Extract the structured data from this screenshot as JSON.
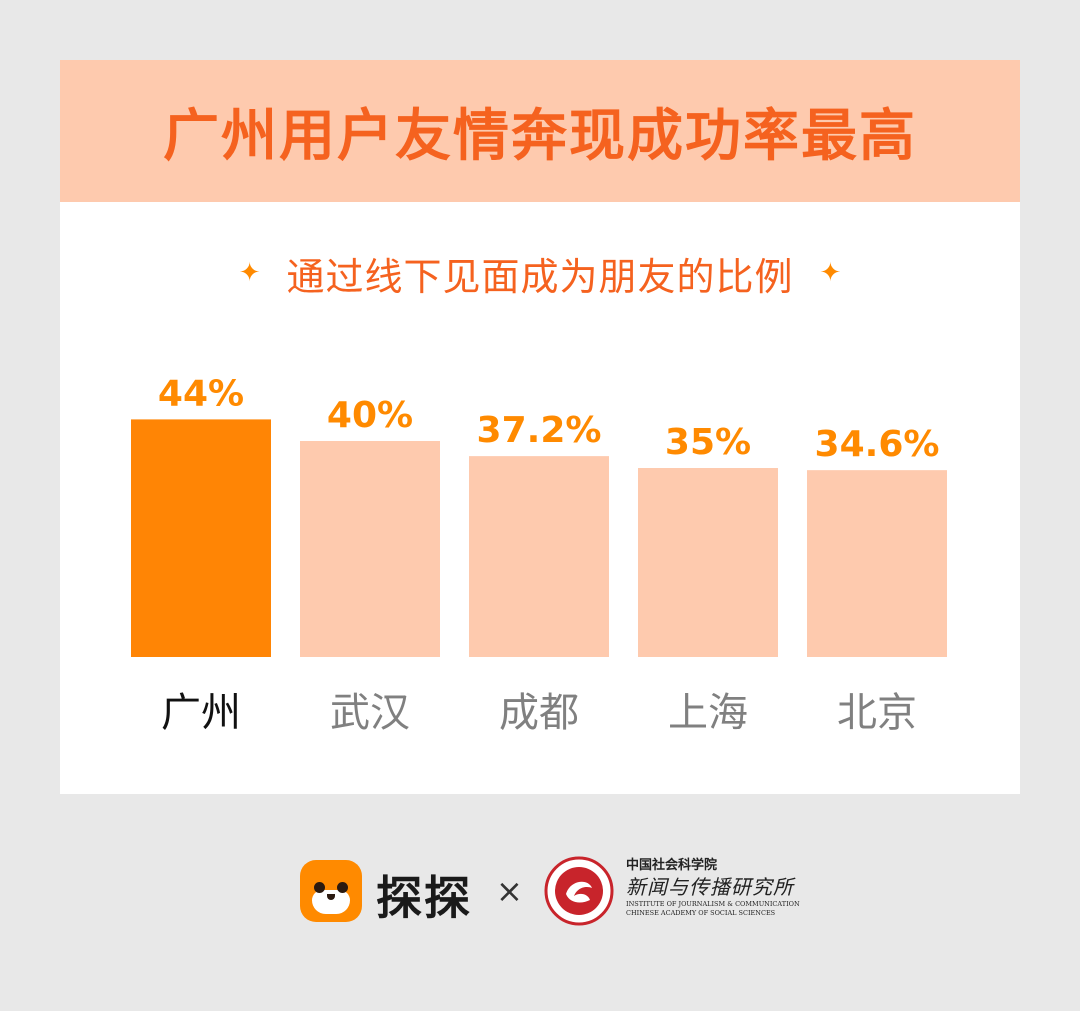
{
  "header": {
    "title": "广州用户友情奔现成功率最高"
  },
  "sparkle_glyph": "✦",
  "chart_data": {
    "type": "bar",
    "title": "通过线下见面成为朋友的比例",
    "categories": [
      "广州",
      "武汉",
      "成都",
      "上海",
      "北京"
    ],
    "values": [
      44,
      40,
      37.2,
      35,
      34.6
    ],
    "value_labels": [
      "44%",
      "40%",
      "37.2%",
      "35%",
      "34.6%"
    ],
    "highlight_index": 0,
    "colors": {
      "highlight_bar": "#ff8505",
      "bar": "#fecaae",
      "value_label": "#ff8a00",
      "highlight_category": "#111111",
      "category": "#808080"
    },
    "grid": false,
    "legend": "none"
  },
  "footer": {
    "app_icon": "fox-face-icon",
    "app_name": "探探",
    "times": "×",
    "seal_icon": "institute-seal-icon",
    "institute_cn_1": "中国社会科学院",
    "institute_cn_2": "新闻与传播研究所",
    "institute_en_1": "INSTITUTE OF JOURNALISM & COMMUNICATION",
    "institute_en_2": "CHINESE ACADEMY OF SOCIAL SCIENCES"
  }
}
